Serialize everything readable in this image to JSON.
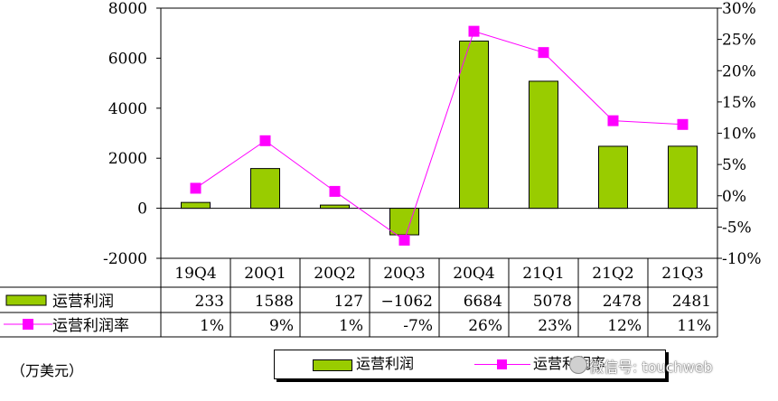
{
  "chart_data": {
    "type": "bar+line",
    "categories": [
      "19Q4",
      "20Q1",
      "20Q2",
      "20Q3",
      "20Q4",
      "21Q1",
      "21Q2",
      "21Q3"
    ],
    "series": [
      {
        "name": "运营利润",
        "type": "bar",
        "axis": "left",
        "values": [
          233,
          1588,
          127,
          -1062,
          6684,
          5078,
          2478,
          2481
        ],
        "color": "#99cc00"
      },
      {
        "name": "运营利润率",
        "type": "line",
        "axis": "right",
        "values": [
          1.2,
          8.8,
          0.7,
          -7.1,
          26.3,
          22.9,
          12.0,
          11.4
        ],
        "color": "#ff00ff"
      }
    ],
    "left_axis": {
      "ylim": [
        -2000,
        8000
      ],
      "ticks": [
        -2000,
        0,
        2000,
        4000,
        6000,
        8000
      ],
      "tick_labels": [
        "-2000",
        "0",
        "2000",
        "4000",
        "6000",
        "8000"
      ]
    },
    "right_axis": {
      "ylim": [
        -10,
        30
      ],
      "ticks": [
        -10,
        -5,
        0,
        5,
        10,
        15,
        20,
        25,
        30
      ],
      "tick_labels": [
        "-10%",
        "-5%",
        "0%",
        "5%",
        "10%",
        "15%",
        "20%",
        "25%",
        "30%"
      ]
    },
    "table": {
      "rows": [
        {
          "label": "运营利润",
          "cells": [
            "233",
            "1588",
            "127",
            "−1062",
            "6684",
            "5078",
            "2478",
            "2481"
          ]
        },
        {
          "label": "运营利润率",
          "cells": [
            "1%",
            "9%",
            "1%",
            "-7%",
            "26%",
            "23%",
            "12%",
            "11%"
          ]
        }
      ]
    },
    "unit_label": "（万美元）",
    "legend": {
      "items": [
        "运营利润",
        "运营利润率"
      ],
      "placement": "bottom"
    }
  },
  "watermark": {
    "text": "微信号: touchweb"
  }
}
